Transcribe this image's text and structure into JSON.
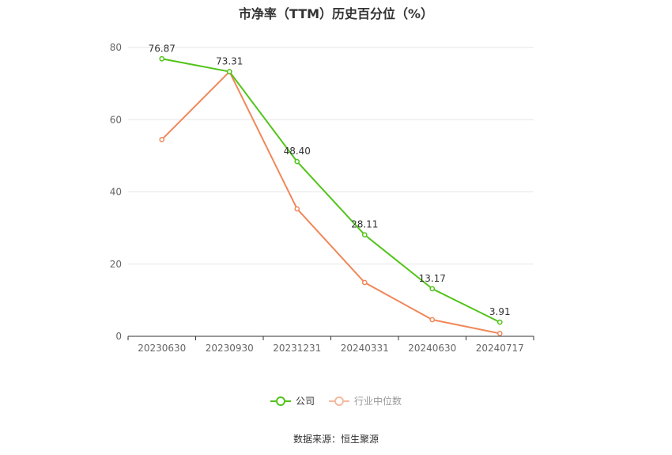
{
  "title": "市净率（TTM）历史百分位（%）",
  "source": "数据来源：恒生聚源",
  "colors": {
    "company": "#52c41a",
    "industry": "#f0885a",
    "grid": "#e6e6e6",
    "axis": "#333333",
    "tick_text": "#666666"
  },
  "chart_data": {
    "type": "line",
    "title": "市净率（TTM）历史百分位（%）",
    "categories": [
      "20230630",
      "20230930",
      "20231231",
      "20240331",
      "20240630",
      "20240717"
    ],
    "ylim": [
      0,
      80
    ],
    "yticks": [
      0,
      20,
      40,
      60,
      80
    ],
    "grid": true,
    "legend_position": "bottom-center",
    "series": [
      {
        "name": "公司",
        "values": [
          76.87,
          73.31,
          48.4,
          28.11,
          13.17,
          3.91
        ],
        "labels": [
          "76.87",
          "73.31",
          "48.40",
          "28.11",
          "13.17",
          "3.91"
        ],
        "show_labels": true
      },
      {
        "name": "行业中位数",
        "values": [
          54.5,
          73.3,
          35.3,
          14.9,
          4.6,
          0.8
        ],
        "show_labels": false
      }
    ]
  }
}
